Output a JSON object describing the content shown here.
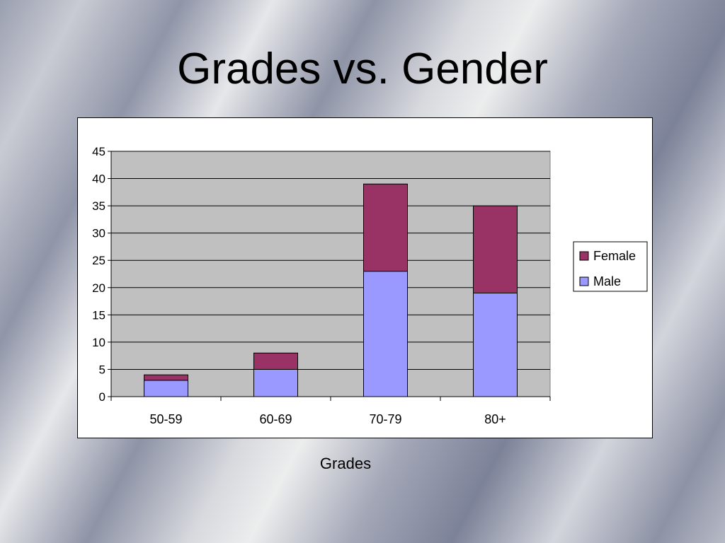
{
  "slide": {
    "title": "Grades vs. Gender"
  },
  "chart_data": {
    "type": "bar",
    "stacked": true,
    "title": "",
    "xlabel": "Grades",
    "ylabel": "",
    "categories": [
      "50-59",
      "60-69",
      "70-79",
      "80+"
    ],
    "series": [
      {
        "name": "Male",
        "values": [
          3,
          5,
          23,
          19
        ],
        "color": "#9999ff"
      },
      {
        "name": "Female",
        "values": [
          1,
          3,
          16,
          16
        ],
        "color": "#993366"
      }
    ],
    "ylim": [
      0,
      45
    ],
    "yticks": [
      0,
      5,
      10,
      15,
      20,
      25,
      30,
      35,
      40,
      45
    ],
    "grid": true,
    "plot_background": "#c0c0c0",
    "legend_position": "right",
    "legend_order": [
      "Female",
      "Male"
    ]
  }
}
